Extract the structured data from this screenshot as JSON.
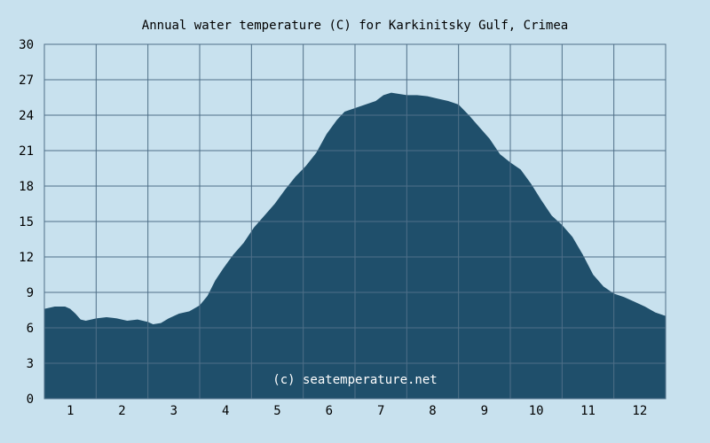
{
  "colors": {
    "background": "#c8e1ee",
    "area_fill": "#1f4f6b",
    "grid": "#4f6f88",
    "text": "#000000",
    "watermark": "#ffffff"
  },
  "chart_data": {
    "type": "area",
    "title": "Annual water temperature (C) for Karkinitsky Gulf, Crimea",
    "xlabel": "",
    "ylabel": "",
    "watermark": "(c) seatemperature.net",
    "xlim": [
      0.5,
      12.5
    ],
    "ylim": [
      0,
      30
    ],
    "x_ticks": [
      1,
      2,
      3,
      4,
      5,
      6,
      7,
      8,
      9,
      10,
      11,
      12
    ],
    "x_tick_labels": [
      "1",
      "2",
      "3",
      "4",
      "5",
      "6",
      "7",
      "8",
      "9",
      "10",
      "11",
      "12"
    ],
    "y_ticks": [
      0,
      3,
      6,
      9,
      12,
      15,
      18,
      21,
      24,
      27,
      30
    ],
    "y_tick_labels": [
      "0",
      "3",
      "6",
      "9",
      "12",
      "15",
      "18",
      "21",
      "24",
      "27",
      "30"
    ],
    "grid": true,
    "series": [
      {
        "x": [
          0.5,
          0.7,
          0.9,
          1.0,
          1.1,
          1.2,
          1.3,
          1.5,
          1.7,
          1.9,
          2.1,
          2.3,
          2.5,
          2.6,
          2.75,
          2.9,
          3.1,
          3.3,
          3.5,
          3.65,
          3.8,
          3.95,
          4.15,
          4.35,
          4.55,
          4.75,
          4.95,
          5.15,
          5.35,
          5.55,
          5.75,
          5.95,
          6.15,
          6.3,
          6.5,
          6.7,
          6.9,
          7.05,
          7.2,
          7.35,
          7.5,
          7.7,
          7.9,
          8.1,
          8.3,
          8.5,
          8.7,
          8.9,
          9.1,
          9.3,
          9.5,
          9.7,
          9.9,
          10.1,
          10.3,
          10.5,
          10.7,
          10.9,
          11.1,
          11.3,
          11.5,
          11.7,
          11.9,
          12.1,
          12.3,
          12.5
        ],
        "y": [
          7.6,
          7.8,
          7.8,
          7.6,
          7.2,
          6.7,
          6.6,
          6.8,
          6.9,
          6.8,
          6.6,
          6.7,
          6.5,
          6.3,
          6.4,
          6.8,
          7.2,
          7.4,
          7.9,
          8.7,
          10.0,
          11.0,
          12.2,
          13.2,
          14.5,
          15.5,
          16.5,
          17.7,
          18.8,
          19.7,
          20.8,
          22.4,
          23.6,
          24.3,
          24.6,
          24.9,
          25.2,
          25.7,
          25.9,
          25.8,
          25.7,
          25.7,
          25.6,
          25.4,
          25.2,
          24.9,
          24.0,
          23.0,
          22.0,
          20.7,
          20.0,
          19.4,
          18.2,
          16.8,
          15.5,
          14.7,
          13.7,
          12.2,
          10.5,
          9.5,
          8.9,
          8.6,
          8.2,
          7.8,
          7.3,
          7.0
        ]
      }
    ]
  }
}
